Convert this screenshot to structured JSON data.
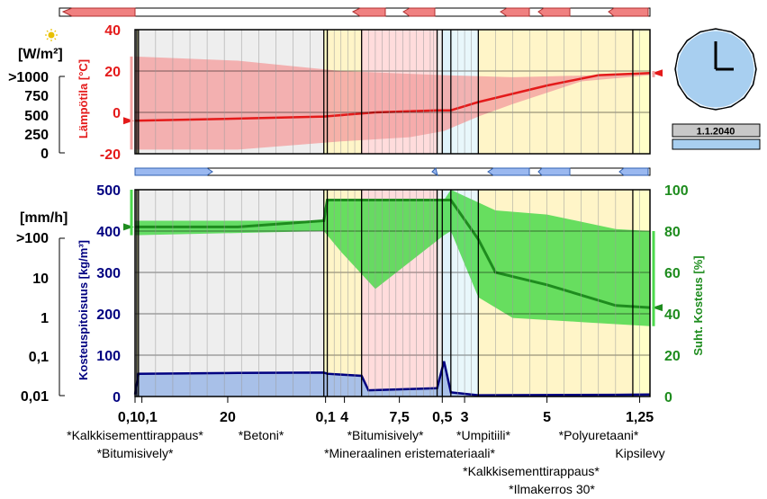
{
  "chart_data": [
    {
      "type": "line",
      "name": "temperature",
      "ylabel": "Lämpötila [°C]",
      "ylim": [
        -20,
        40
      ],
      "yticks": [
        "40",
        "20",
        "0",
        "-20"
      ],
      "band_upper": [
        [
          0.0,
          27
        ],
        [
          0.3,
          25
        ],
        [
          0.6,
          20
        ],
        [
          0.9,
          18
        ],
        [
          1.1,
          17
        ],
        [
          1.35,
          18
        ],
        [
          1.5,
          19
        ]
      ],
      "band_lower": [
        [
          0.0,
          -18
        ],
        [
          0.3,
          -18
        ],
        [
          0.6,
          -14
        ],
        [
          0.8,
          -12
        ],
        [
          0.9,
          -9
        ],
        [
          1.0,
          -2
        ],
        [
          1.1,
          4
        ],
        [
          1.3,
          15
        ],
        [
          1.5,
          18
        ]
      ],
      "series": [
        {
          "values": [
            [
              0.0,
              -4
            ],
            [
              0.3,
              -3
            ],
            [
              0.55,
              -2
            ],
            [
              0.7,
              0
            ],
            [
              0.88,
              1
            ],
            [
              0.92,
              1
            ],
            [
              1.0,
              5
            ],
            [
              1.2,
              13
            ],
            [
              1.35,
              18
            ],
            [
              1.5,
              19
            ]
          ]
        }
      ],
      "line_color": "#e41a1a",
      "band_color": "#f4a0a0"
    },
    {
      "type": "line",
      "name": "moisture",
      "ylabel_left": "Kosteuspitoisuus [kg/m³]",
      "ylabel_right": "Suht. Kosteus [%]",
      "ylim_left": [
        0,
        500
      ],
      "ylim_right": [
        0,
        100
      ],
      "yticks_left": [
        "500",
        "400",
        "300",
        "200",
        "100",
        "0"
      ],
      "yticks_right": [
        "100",
        "80",
        "60",
        "40",
        "20",
        "0"
      ],
      "rh_band_upper": [
        [
          0.0,
          85
        ],
        [
          0.55,
          85
        ],
        [
          0.56,
          95
        ],
        [
          0.9,
          95
        ],
        [
          0.92,
          100
        ],
        [
          1.05,
          90
        ],
        [
          1.2,
          88
        ],
        [
          1.4,
          81
        ],
        [
          1.5,
          80
        ]
      ],
      "rh_band_lower": [
        [
          0.0,
          78
        ],
        [
          0.55,
          80
        ],
        [
          0.6,
          70
        ],
        [
          0.7,
          52
        ],
        [
          0.9,
          78
        ],
        [
          0.92,
          80
        ],
        [
          1.0,
          48
        ],
        [
          1.1,
          38
        ],
        [
          1.3,
          36
        ],
        [
          1.5,
          34
        ]
      ],
      "series": [
        {
          "name": "Suht. Kosteus",
          "color": "#1e8c1e",
          "values": [
            [
              0.0,
              82
            ],
            [
              0.3,
              82
            ],
            [
              0.55,
              85
            ],
            [
              0.56,
              95
            ],
            [
              0.9,
              95
            ],
            [
              0.92,
              95
            ],
            [
              1.0,
              76
            ],
            [
              1.05,
              60
            ],
            [
              1.2,
              54
            ],
            [
              1.4,
              44
            ],
            [
              1.5,
              43
            ]
          ]
        },
        {
          "name": "Kosteuspitoisuus",
          "color": "#000080",
          "values": [
            [
              0.0,
              5
            ],
            [
              0.01,
              55
            ],
            [
              0.3,
              57
            ],
            [
              0.55,
              58
            ],
            [
              0.56,
              55
            ],
            [
              0.66,
              50
            ],
            [
              0.68,
              15
            ],
            [
              0.88,
              20
            ],
            [
              0.9,
              85
            ],
            [
              0.92,
              10
            ],
            [
              1.0,
              3
            ],
            [
              1.4,
              4
            ],
            [
              1.5,
              5
            ]
          ]
        }
      ]
    }
  ],
  "x_axis": {
    "tick_labels": [
      "0,1",
      "0,1",
      "20",
      "0,1",
      "4",
      "7,5",
      "0,5",
      "3",
      "5",
      "1,25"
    ]
  },
  "layers": [
    {
      "name": "Kalkkisementtirappaus",
      "label": "*Kalkkisementtirappaus*"
    },
    {
      "name": "Bitumisively",
      "label": "*Bitumisively*"
    },
    {
      "name": "Betoni",
      "label": "*Betoni*"
    },
    {
      "name": "Bitumisively",
      "label": "*Bitumisively*"
    },
    {
      "name": "Mineraalinen eristemateriaali",
      "label": "*Mineraalinen eristemateriaali*"
    },
    {
      "name": "Umpitiili",
      "label": "*Umpitiili*"
    },
    {
      "name": "Kalkkisementtirappaus",
      "label": "*Kalkkisementtirappaus*"
    },
    {
      "name": "Ilmakerros 30",
      "label": "*Ilmakerros 30*"
    },
    {
      "name": "Polyuretaani",
      "label": "*Polyuretaani*"
    },
    {
      "name": "Kipsilevy",
      "label": "Kipsilevy"
    }
  ],
  "radiation": {
    "unit": "[W/m²]",
    "ticks": [
      ">1000",
      "750",
      "500",
      "250",
      "0"
    ]
  },
  "rain": {
    "unit": "[mm/h]",
    "ticks": [
      ">100",
      "10",
      "1",
      "0,1",
      "0,01"
    ]
  },
  "date": "1.1.2040",
  "colors": {
    "temp_line": "#e41a1a",
    "temp_band": "#f4a0a0",
    "rh_line": "#1e8c1e",
    "rh_band": "#4cd94c",
    "moisture_line": "#000080",
    "moisture_fill": "#a8c0e8",
    "clock_face": "#a8cff0"
  }
}
